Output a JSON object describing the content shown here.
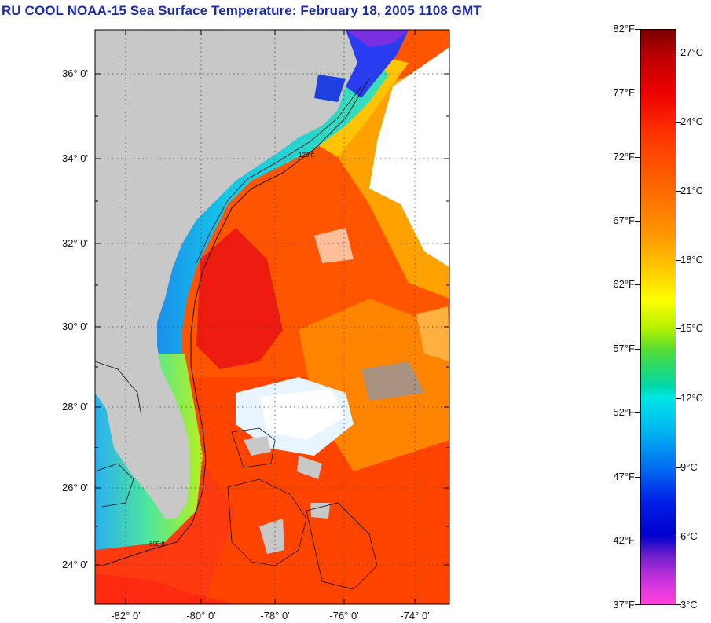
{
  "title": "RU COOL  NOAA-15  Sea Surface Temperature:  February 18, 2005 1108 GMT",
  "map": {
    "lat_labels": [
      "36° 0'",
      "34° 0'",
      "32° 0'",
      "30° 0'",
      "28° 0'",
      "26° 0'",
      "24° 0'"
    ],
    "lon_labels": [
      "-82° 0'",
      "-80° 0'",
      "-78° 0'",
      "-76° 0'",
      "-74° 0'"
    ],
    "contour_labels": [
      "120 ft",
      "600 ft"
    ],
    "colors": {
      "land": "#c8c8c8",
      "cloud": "#ffffff",
      "frame": "#000000"
    }
  },
  "colorbar": {
    "fahrenheit": [
      "82°F",
      "77°F",
      "72°F",
      "67°F",
      "62°F",
      "57°F",
      "52°F",
      "47°F",
      "42°F",
      "37°F"
    ],
    "celsius": [
      "27°C",
      "24°C",
      "21°C",
      "18°C",
      "15°C",
      "12°C",
      "9°C",
      "6°C",
      "3°C"
    ]
  }
}
